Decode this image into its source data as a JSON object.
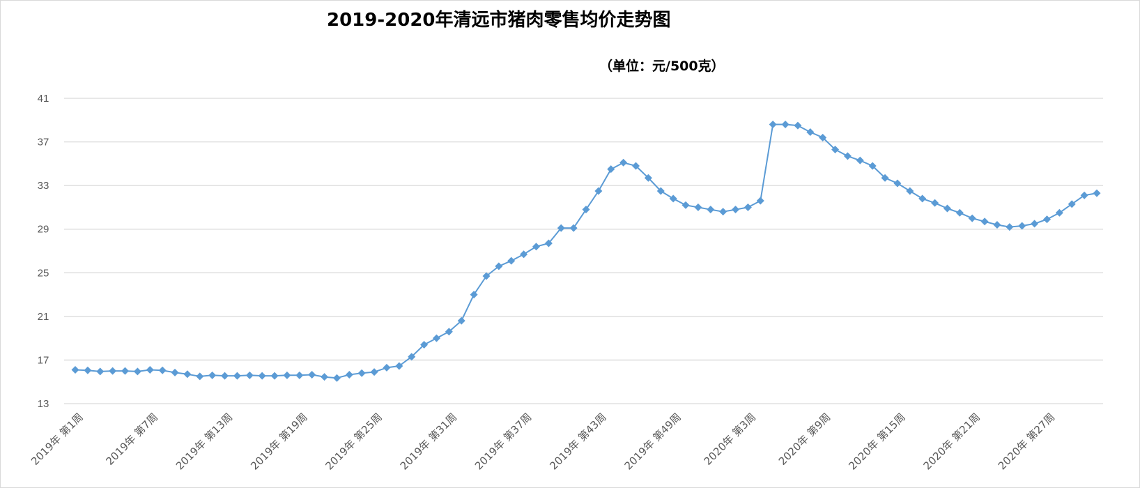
{
  "chart_data": {
    "type": "line",
    "title": "2019-2020年清远市猪肉零售均价走势图",
    "subtitle": "（单位：元/500克）",
    "ylim": [
      13,
      41
    ],
    "yticks": [
      13,
      17,
      21,
      25,
      29,
      33,
      37,
      41
    ],
    "grid": true,
    "legend": "none",
    "series_color": "#5b9bd5",
    "x_tick_labels": [
      "2019年 第1周",
      "2019年 第7周",
      "2019年 第13周",
      "2019年 第19周",
      "2019年 第25周",
      "2019年 第31周",
      "2019年 第37周",
      "2019年 第43周",
      "2019年 第49周",
      "2020年 第3周",
      "2020年 第9周",
      "2020年 第15周",
      "2020年 第21周",
      "2020年 第27周"
    ],
    "x_tick_every": 6,
    "values": [
      16.1,
      16.05,
      15.95,
      16.0,
      16.0,
      15.95,
      16.1,
      16.05,
      15.85,
      15.7,
      15.5,
      15.6,
      15.55,
      15.55,
      15.6,
      15.55,
      15.55,
      15.6,
      15.6,
      15.65,
      15.45,
      15.35,
      15.65,
      15.8,
      15.9,
      16.3,
      16.45,
      17.3,
      18.4,
      19.0,
      19.6,
      20.6,
      23.0,
      24.7,
      25.6,
      26.1,
      26.7,
      27.4,
      27.7,
      29.1,
      29.1,
      30.8,
      32.5,
      34.5,
      35.1,
      34.8,
      33.7,
      32.5,
      31.8,
      31.2,
      31.0,
      30.8,
      30.6,
      30.8,
      31.0,
      31.6,
      38.6,
      38.6,
      38.5,
      37.9,
      37.4,
      36.3,
      35.7,
      35.3,
      34.8,
      33.7,
      33.2,
      32.5,
      31.8,
      31.4,
      30.9,
      30.5,
      30.0,
      29.7,
      29.4,
      29.2,
      29.3,
      29.5,
      29.9,
      30.5,
      31.3,
      32.1,
      32.3
    ]
  }
}
